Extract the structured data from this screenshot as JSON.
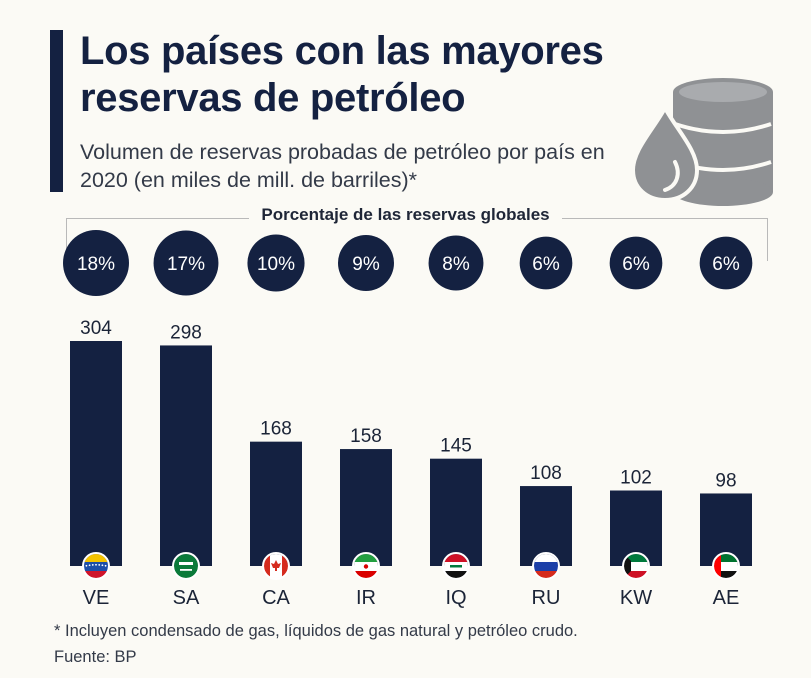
{
  "header": {
    "title": "Los países con las mayores reservas de petróleo",
    "subtitle": "Volumen de reservas probadas de petróleo por país en 2020 (en miles de mill. de barriles)*",
    "pct_title": "Porcentaje de las reservas globales"
  },
  "colors": {
    "bar": "#142141",
    "bubble": "#142141",
    "text": "#1b2437",
    "icon": "#8f9194"
  },
  "chart_data": {
    "type": "bar",
    "categories": [
      "VE",
      "SA",
      "CA",
      "IR",
      "IQ",
      "RU",
      "KW",
      "AE"
    ],
    "values": [
      304,
      298,
      168,
      158,
      145,
      108,
      102,
      98
    ],
    "shares": [
      "18%",
      "17%",
      "10%",
      "9%",
      "8%",
      "6%",
      "6%",
      "6%"
    ],
    "share_values": [
      18,
      17,
      10,
      9,
      8,
      6,
      6,
      6
    ],
    "title": "Los países con las mayores reservas de petróleo",
    "subtitle": "Volumen de reservas probadas de petróleo por país en 2020 (en miles de mill. de barriles)*",
    "xlabel": "",
    "ylabel": "",
    "ylim": [
      0,
      304
    ],
    "grid": false,
    "legend": "none"
  },
  "footer": {
    "note": "* Incluyen condensado de gas, líquidos de gas natural y petróleo crudo.",
    "source": "Fuente: BP"
  }
}
